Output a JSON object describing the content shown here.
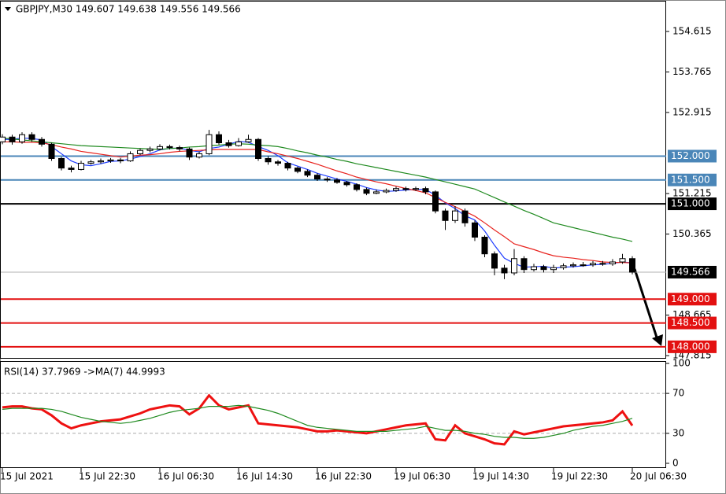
{
  "chart_data": [
    {
      "type": "candlestick",
      "title": "GBPJPY,M30  149.607 149.638 149.556 149.566",
      "categories": [
        "15 Jul 2021",
        null,
        null,
        null,
        null,
        null,
        null,
        null,
        "15 Jul 22:30",
        null,
        null,
        null,
        null,
        null,
        null,
        null,
        "16 Jul 06:30",
        null,
        null,
        null,
        null,
        null,
        null,
        null,
        "16 Jul 14:30",
        null,
        null,
        null,
        null,
        null,
        null,
        null,
        "16 Jul 22:30",
        null,
        null,
        null,
        null,
        null,
        null,
        null,
        "19 Jul 06:30",
        null,
        null,
        null,
        null,
        null,
        null,
        null,
        "19 Jul 14:30",
        null,
        null,
        null,
        null,
        null,
        null,
        null,
        "19 Jul 22:30",
        null,
        null,
        null,
        null,
        null,
        null,
        null,
        "20 Jul 06:30"
      ],
      "ohlc": [
        [
          152.3,
          152.46,
          152.25,
          152.4
        ],
        [
          152.4,
          152.45,
          152.24,
          152.3
        ],
        [
          152.3,
          152.5,
          152.26,
          152.45
        ],
        [
          152.45,
          152.5,
          152.3,
          152.35
        ],
        [
          152.35,
          152.4,
          152.2,
          152.25
        ],
        [
          152.25,
          152.28,
          151.9,
          151.95
        ],
        [
          151.95,
          151.98,
          151.7,
          151.75
        ],
        [
          151.75,
          151.8,
          151.66,
          151.72
        ],
        [
          151.72,
          151.9,
          151.7,
          151.85
        ],
        [
          151.85,
          151.92,
          151.82,
          151.88
        ],
        [
          151.88,
          151.95,
          151.84,
          151.9
        ],
        [
          151.9,
          151.96,
          151.86,
          151.92
        ],
        [
          151.92,
          151.96,
          151.85,
          151.9
        ],
        [
          151.9,
          152.1,
          151.88,
          152.05
        ],
        [
          152.05,
          152.16,
          152.02,
          152.12
        ],
        [
          152.12,
          152.2,
          152.08,
          152.15
        ],
        [
          152.15,
          152.25,
          152.12,
          152.2
        ],
        [
          152.2,
          152.24,
          152.14,
          152.18
        ],
        [
          152.18,
          152.22,
          152.1,
          152.15
        ],
        [
          152.15,
          152.18,
          151.92,
          151.98
        ],
        [
          151.98,
          152.1,
          151.95,
          152.05
        ],
        [
          152.05,
          152.55,
          152.02,
          152.45
        ],
        [
          152.45,
          152.52,
          152.24,
          152.28
        ],
        [
          152.28,
          152.34,
          152.18,
          152.22
        ],
        [
          152.22,
          152.38,
          152.2,
          152.3
        ],
        [
          152.3,
          152.45,
          152.28,
          152.35
        ],
        [
          152.35,
          152.38,
          151.9,
          151.95
        ],
        [
          151.95,
          152.0,
          151.82,
          151.88
        ],
        [
          151.88,
          151.92,
          151.8,
          151.85
        ],
        [
          151.85,
          151.88,
          151.7,
          151.75
        ],
        [
          151.75,
          151.78,
          151.64,
          151.68
        ],
        [
          151.68,
          151.72,
          151.56,
          151.6
        ],
        [
          151.6,
          151.64,
          151.48,
          151.52
        ],
        [
          151.52,
          151.56,
          151.46,
          151.5
        ],
        [
          151.5,
          151.54,
          151.42,
          151.45
        ],
        [
          151.45,
          151.48,
          151.36,
          151.4
        ],
        [
          151.4,
          151.43,
          151.26,
          151.3
        ],
        [
          151.3,
          151.34,
          151.18,
          151.22
        ],
        [
          151.22,
          151.3,
          151.2,
          151.25
        ],
        [
          151.25,
          151.32,
          151.22,
          151.28
        ],
        [
          151.28,
          151.36,
          151.25,
          151.32
        ],
        [
          151.32,
          151.36,
          151.26,
          151.3
        ],
        [
          151.3,
          151.36,
          151.27,
          151.32
        ],
        [
          151.32,
          151.36,
          151.2,
          151.25
        ],
        [
          151.25,
          151.28,
          150.8,
          150.85
        ],
        [
          150.85,
          150.9,
          150.45,
          150.65
        ],
        [
          150.65,
          150.95,
          150.6,
          150.85
        ],
        [
          150.85,
          150.9,
          150.52,
          150.6
        ],
        [
          150.6,
          150.65,
          150.22,
          150.3
        ],
        [
          150.3,
          150.34,
          149.88,
          149.95
        ],
        [
          149.95,
          150.0,
          149.5,
          149.65
        ],
        [
          149.65,
          149.72,
          149.42,
          149.55
        ],
        [
          149.55,
          150.05,
          149.5,
          149.85
        ],
        [
          149.85,
          149.9,
          149.55,
          149.62
        ],
        [
          149.62,
          149.74,
          149.58,
          149.68
        ],
        [
          149.68,
          149.72,
          149.56,
          149.62
        ],
        [
          149.62,
          149.72,
          149.55,
          149.66
        ],
        [
          149.66,
          149.75,
          149.62,
          149.7
        ],
        [
          149.7,
          149.77,
          149.66,
          149.72
        ],
        [
          149.72,
          149.78,
          149.68,
          149.72
        ],
        [
          149.72,
          149.8,
          149.68,
          149.75
        ],
        [
          149.75,
          149.8,
          149.7,
          149.74
        ],
        [
          149.74,
          149.84,
          149.7,
          149.78
        ],
        [
          149.78,
          149.95,
          149.74,
          149.85
        ],
        [
          149.85,
          149.9,
          149.52,
          149.566
        ]
      ],
      "series": [
        {
          "color": "#1e3cff",
          "values": [
            152.35,
            152.35,
            152.38,
            152.37,
            152.34,
            152.2,
            152.05,
            151.9,
            151.82,
            151.8,
            151.84,
            151.89,
            151.9,
            151.94,
            151.99,
            152.05,
            152.13,
            152.16,
            152.17,
            152.12,
            152.09,
            152.16,
            152.19,
            152.25,
            152.31,
            152.29,
            152.2,
            152.12,
            152.01,
            151.86,
            151.79,
            151.72,
            151.64,
            151.58,
            151.52,
            151.47,
            151.41,
            151.34,
            151.29,
            151.26,
            151.27,
            151.29,
            151.3,
            151.3,
            151.18,
            151.02,
            150.9,
            150.75,
            150.66,
            150.43,
            150.13,
            149.86,
            149.75,
            149.67,
            149.68,
            149.69,
            149.65,
            149.67,
            149.68,
            149.7,
            149.72,
            149.73,
            149.75,
            149.78,
            149.76
          ]
        },
        {
          "color": "#e8231e",
          "values": [
            152.3,
            152.3,
            152.29,
            152.29,
            152.28,
            152.24,
            152.19,
            152.15,
            152.1,
            152.07,
            152.04,
            152.01,
            151.98,
            152.0,
            152.02,
            152.03,
            152.05,
            152.08,
            152.1,
            152.11,
            152.12,
            152.13,
            152.14,
            152.14,
            152.14,
            152.14,
            152.14,
            152.09,
            152.05,
            152.0,
            151.95,
            151.89,
            151.83,
            151.76,
            151.69,
            151.63,
            151.56,
            151.51,
            151.46,
            151.42,
            151.37,
            151.32,
            151.28,
            151.23,
            151.13,
            151.03,
            150.94,
            150.84,
            150.74,
            150.6,
            150.45,
            150.31,
            150.16,
            150.1,
            150.04,
            149.97,
            149.91,
            149.88,
            149.86,
            149.83,
            149.81,
            149.78,
            149.77,
            149.77,
            149.76
          ]
        },
        {
          "color": "#1f8a1f",
          "values": [
            152.38,
            152.36,
            152.34,
            152.32,
            152.3,
            152.28,
            152.26,
            152.24,
            152.22,
            152.21,
            152.2,
            152.19,
            152.18,
            152.17,
            152.16,
            152.15,
            152.14,
            152.16,
            152.17,
            152.19,
            152.2,
            152.22,
            152.23,
            152.25,
            152.26,
            152.25,
            152.23,
            152.22,
            152.2,
            152.16,
            152.11,
            152.07,
            152.02,
            151.98,
            151.93,
            151.89,
            151.84,
            151.8,
            151.76,
            151.72,
            151.68,
            151.64,
            151.6,
            151.56,
            151.51,
            151.46,
            151.41,
            151.36,
            151.31,
            151.22,
            151.13,
            151.04,
            150.95,
            150.86,
            150.78,
            150.69,
            150.6,
            150.55,
            150.5,
            150.45,
            150.4,
            150.35,
            150.3,
            150.26,
            150.21
          ]
        }
      ],
      "levels": [
        {
          "value": 152,
          "label": "152.000",
          "color": "#4a86b8"
        },
        {
          "value": 151.5,
          "label": "151.500",
          "color": "#4a86b8"
        },
        {
          "value": 151,
          "label": "151.000",
          "color": "#000000"
        },
        {
          "value": 149.566,
          "label": "149.566",
          "color": "#b0b0b0"
        },
        {
          "value": 149,
          "label": "149.000",
          "color": "#e31010"
        },
        {
          "value": 148.5,
          "label": "148.500",
          "color": "#e31010"
        },
        {
          "value": 148,
          "label": "148.000",
          "color": "#e31010"
        }
      ],
      "ylim": [
        147.767,
        155.275
      ],
      "yticks": [
        154.615,
        153.765,
        152.915,
        151.215,
        150.365,
        148.665,
        147.815
      ]
    },
    {
      "type": "line",
      "title": "RSI(14) 37.7969  ->MA(7) 44.9993",
      "series": [
        {
          "color": "#ee1111",
          "values": [
            56,
            57,
            57,
            55,
            54,
            48,
            40,
            35,
            38,
            40,
            42,
            43,
            44,
            47,
            50,
            54,
            56,
            58,
            57,
            49,
            55,
            68,
            58,
            54,
            56,
            58,
            40,
            39,
            38,
            37,
            36,
            34,
            32,
            32,
            33,
            32,
            31,
            30,
            32,
            34,
            36,
            38,
            39,
            40,
            24,
            23,
            38,
            30,
            27,
            24,
            20,
            19,
            32,
            29,
            31,
            33,
            35,
            37,
            38,
            39,
            40,
            41,
            43,
            52,
            37.7969
          ]
        },
        {
          "color": "#1f8a1f",
          "values": [
            54,
            55,
            55,
            55,
            55,
            54,
            52,
            49,
            46,
            44,
            42,
            41,
            40,
            41,
            43,
            45,
            48,
            51,
            53,
            54,
            55,
            57,
            57,
            57,
            58,
            57,
            55,
            53,
            50,
            46,
            42,
            38,
            36,
            35,
            34,
            33,
            32,
            32,
            32,
            32,
            33,
            34,
            35,
            37,
            35,
            33,
            33,
            32,
            30,
            29,
            27,
            26,
            26,
            25,
            25,
            26,
            28,
            30,
            33,
            35,
            37,
            38,
            40,
            42,
            44.9993
          ]
        }
      ],
      "ylim": [
        0,
        100
      ],
      "yticks": [
        0,
        30,
        70,
        100
      ],
      "dashed": [
        30,
        70
      ]
    }
  ]
}
